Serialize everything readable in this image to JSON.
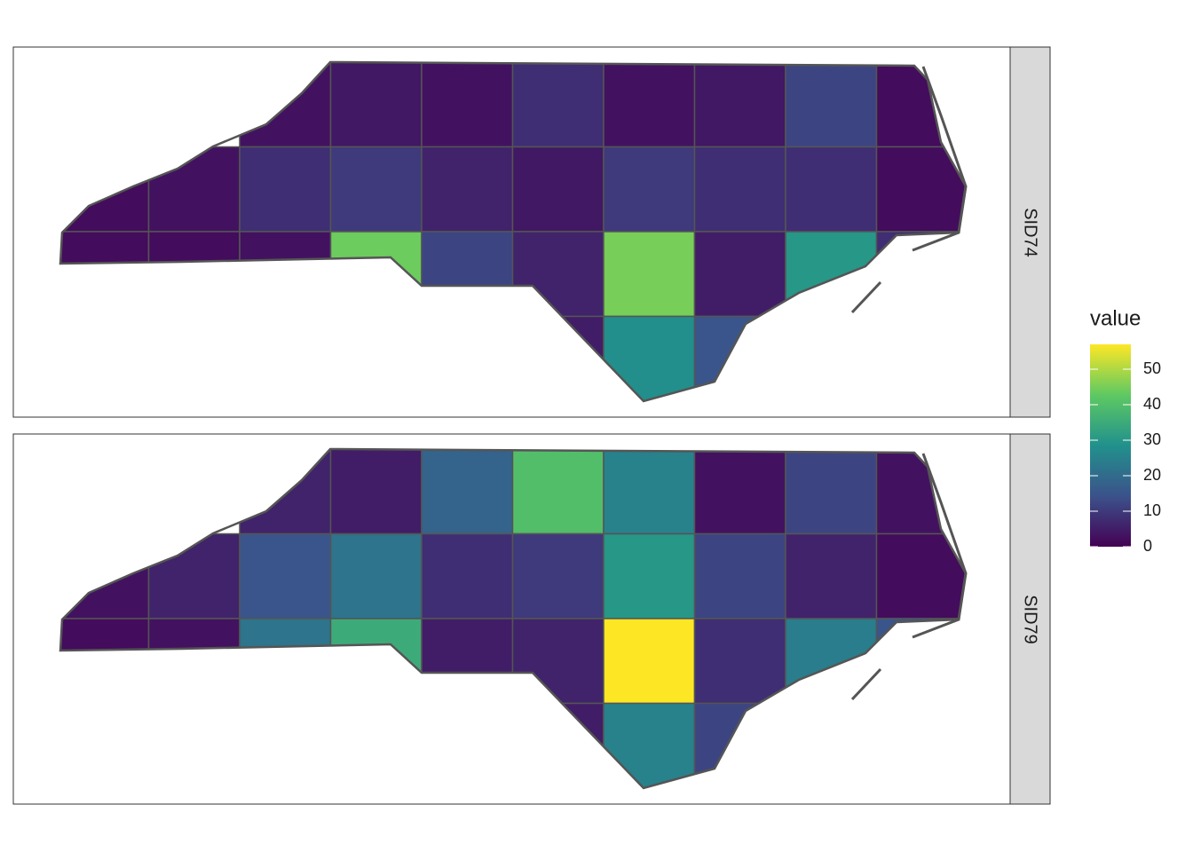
{
  "facets": [
    {
      "label": "SID74",
      "grid": [
        [
          null,
          null,
          3,
          4,
          3,
          8,
          3,
          4,
          12,
          2
        ],
        [
          2,
          3,
          8,
          10,
          6,
          4,
          10,
          8,
          8,
          2
        ],
        [
          2,
          2,
          3,
          44,
          12,
          6,
          45,
          5,
          30,
          8
        ],
        [
          null,
          null,
          null,
          null,
          null,
          5,
          28,
          15,
          null,
          null
        ]
      ]
    },
    {
      "label": "SID79",
      "grid": [
        [
          null,
          null,
          6,
          5,
          18,
          40,
          25,
          3,
          12,
          3
        ],
        [
          3,
          6,
          15,
          22,
          8,
          10,
          30,
          12,
          6,
          2
        ],
        [
          2,
          3,
          22,
          35,
          5,
          6,
          57,
          8,
          24,
          15
        ],
        [
          null,
          null,
          null,
          null,
          null,
          5,
          25,
          12,
          null,
          null
        ]
      ]
    }
  ],
  "legend": {
    "title": "value",
    "lim": [
      0,
      57
    ],
    "ticks": [
      0,
      10,
      20,
      30,
      40,
      50
    ]
  }
}
